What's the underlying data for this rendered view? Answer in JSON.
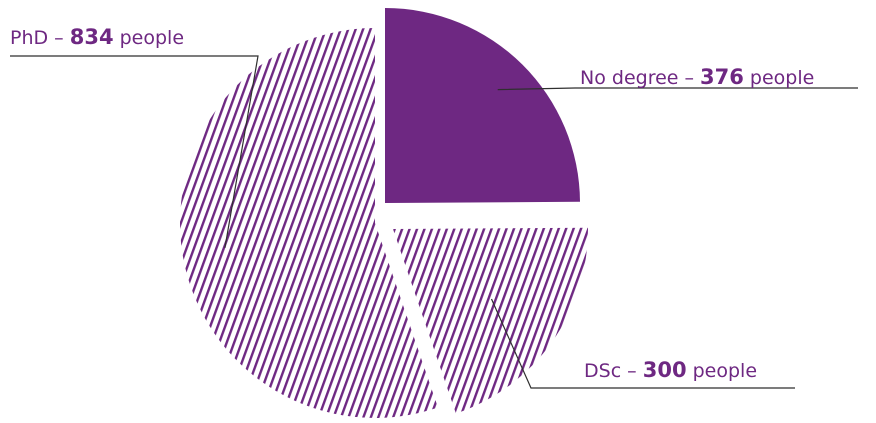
{
  "chart_data": {
    "type": "pie",
    "title": "",
    "unit": "people",
    "slices": [
      {
        "name": "No degree",
        "value": 376,
        "fill": "solid",
        "label": {
          "prefix": "No degree – ",
          "value": "376",
          "suffix": " people"
        }
      },
      {
        "name": "DSc",
        "value": 300,
        "fill": "hatched",
        "label": {
          "prefix": "DSc – ",
          "value": "300",
          "suffix": " people"
        }
      },
      {
        "name": "PhD",
        "value": 834,
        "fill": "hatched",
        "label": {
          "prefix": "PhD – ",
          "value": "834",
          "suffix": " people"
        }
      }
    ],
    "legend": "none",
    "colors": {
      "primary": "#6e2882",
      "hatch_background": "#ffffff",
      "leader_line": "#2f2f2f",
      "text": "#6e2882"
    }
  }
}
